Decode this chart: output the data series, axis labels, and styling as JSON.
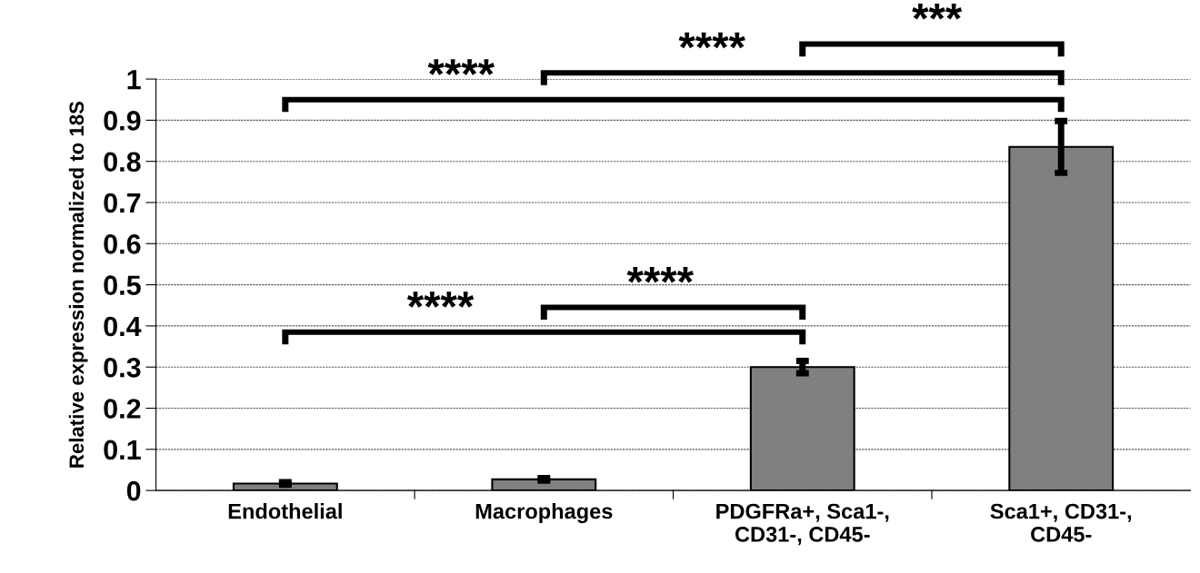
{
  "chart_data": {
    "type": "bar",
    "ylabel": "Relative expression normalized to 18S",
    "categories": [
      "Endothelial",
      "Macrophages",
      "PDGFRa+, Sca1-,\nCD31-, CD45-",
      "Sca1+, CD31-,\nCD45-"
    ],
    "values": [
      0.017,
      0.027,
      0.3,
      0.835
    ],
    "errors": [
      0.003,
      0.003,
      0.015,
      0.063
    ],
    "color": "#808080",
    "ylim": [
      0,
      1
    ],
    "yticks": [
      0,
      0.1,
      0.2,
      0.3,
      0.4,
      0.5,
      0.6,
      0.7,
      0.8,
      0.9,
      1
    ],
    "grid": "y",
    "annotations": [
      "****",
      "****",
      "***",
      "****",
      "****"
    ]
  }
}
